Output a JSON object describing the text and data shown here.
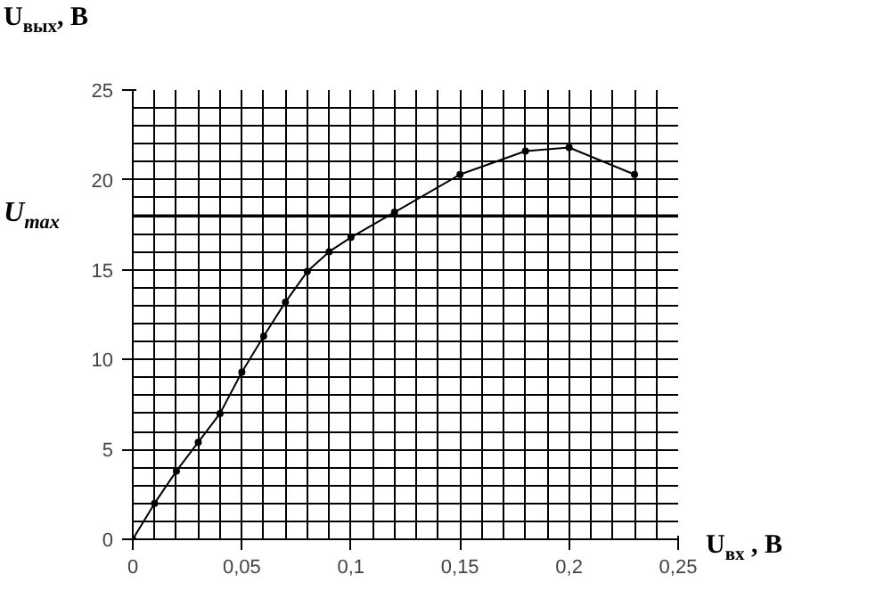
{
  "chart_data": {
    "type": "line",
    "xlabel": "U$_{вх}$ , В",
    "ylabel": "U$_{вых}$, В",
    "x": [
      0,
      0.01,
      0.02,
      0.03,
      0.04,
      0.05,
      0.06,
      0.07,
      0.08,
      0.09,
      0.1,
      0.12,
      0.15,
      0.18,
      0.2,
      0.23
    ],
    "series": [
      {
        "color": "#000000",
        "values": [
          0,
          2,
          3.8,
          5.4,
          7,
          9.3,
          11.3,
          13.2,
          14.9,
          16,
          16.8,
          18.2,
          20.3,
          21.6,
          21.8,
          20.3
        ]
      }
    ],
    "xlim": [
      0,
      0.25
    ],
    "ylim": [
      0,
      25
    ],
    "xticks": [
      0,
      {
        "value": 0.05,
        "label": "0,05"
      },
      {
        "value": 0.1,
        "label": "0,1"
      },
      {
        "value": 0.15,
        "label": "0,15"
      },
      {
        "value": 0.2,
        "label": "0,2"
      },
      {
        "value": 0.25,
        "label": "0,25"
      }
    ],
    "yticks": [
      0,
      5,
      10,
      15,
      20,
      25
    ],
    "ref_lines": [
      {
        "axis": "y",
        "value": 18,
        "label": "U$_{max}$",
        "color": "#000000"
      }
    ],
    "grid": true,
    "marker": "circle",
    "line_style": "solid"
  }
}
